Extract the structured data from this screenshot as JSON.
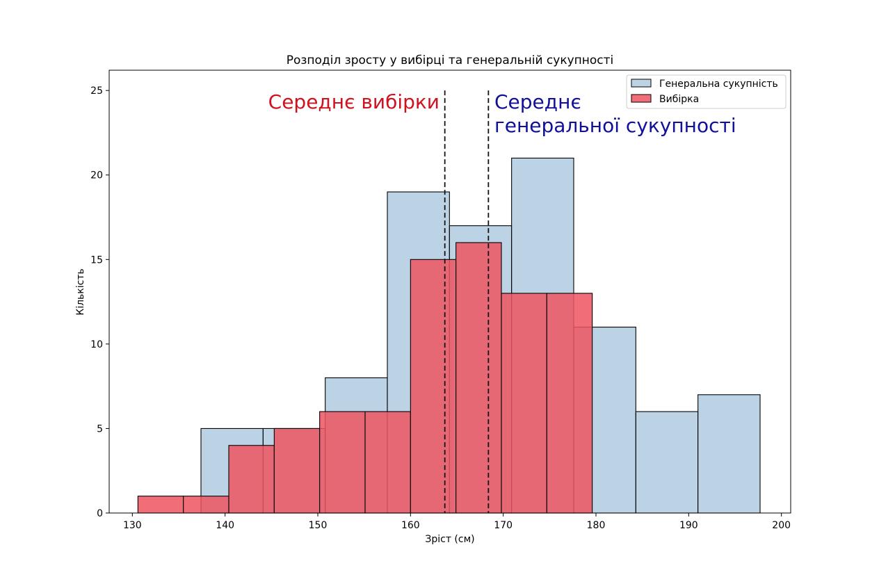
{
  "chart_data": {
    "type": "bar",
    "title": "Розподіл зросту у вибірці та генеральній сукупності",
    "xlabel": "Зріст (см)",
    "ylabel": "Кількість",
    "xlim": [
      127.5,
      201.0
    ],
    "ylim": [
      0,
      26.2
    ],
    "xticks": [
      130,
      140,
      150,
      160,
      170,
      180,
      190,
      200
    ],
    "yticks": [
      0,
      5,
      10,
      15,
      20,
      25
    ],
    "grid": false,
    "legend_position": "top-right",
    "series": [
      {
        "name": "Генеральна сукупність",
        "color": "#a9c7df",
        "edge_color": "#000000",
        "bins": [
          {
            "x0": 137.4,
            "x1": 144.1,
            "count": 5
          },
          {
            "x0": 144.1,
            "x1": 150.8,
            "count": 5
          },
          {
            "x0": 150.8,
            "x1": 157.5,
            "count": 8
          },
          {
            "x0": 157.5,
            "x1": 164.2,
            "count": 19
          },
          {
            "x0": 164.2,
            "x1": 170.9,
            "count": 17
          },
          {
            "x0": 170.9,
            "x1": 177.6,
            "count": 21
          },
          {
            "x0": 177.6,
            "x1": 184.3,
            "count": 11
          },
          {
            "x0": 184.3,
            "x1": 191.0,
            "count": 6
          },
          {
            "x0": 191.0,
            "x1": 197.7,
            "count": 7
          }
        ]
      },
      {
        "name": "Вибірка",
        "color": "#ef5560",
        "edge_color": "#000000",
        "bins": [
          {
            "x0": 130.6,
            "x1": 135.5,
            "count": 1
          },
          {
            "x0": 135.5,
            "x1": 140.4,
            "count": 1
          },
          {
            "x0": 140.4,
            "x1": 145.3,
            "count": 4
          },
          {
            "x0": 145.3,
            "x1": 150.2,
            "count": 5
          },
          {
            "x0": 150.2,
            "x1": 155.1,
            "count": 6
          },
          {
            "x0": 155.1,
            "x1": 160.0,
            "count": 6
          },
          {
            "x0": 160.0,
            "x1": 164.9,
            "count": 15
          },
          {
            "x0": 164.9,
            "x1": 169.8,
            "count": 16
          },
          {
            "x0": 169.8,
            "x1": 174.7,
            "count": 13
          },
          {
            "x0": 174.7,
            "x1": 179.6,
            "count": 13
          }
        ]
      }
    ],
    "vlines": [
      {
        "x": 163.7,
        "label": "Середнє вибірки",
        "color": "#d0121e"
      },
      {
        "x": 168.4,
        "label_lines": [
          "Середнє",
          "генеральної сукупності"
        ],
        "color": "#10109a"
      }
    ]
  }
}
